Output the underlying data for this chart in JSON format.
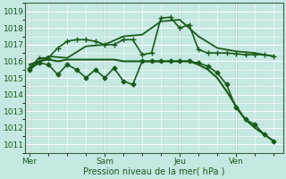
{
  "background_color": "#c5e8e2",
  "grid_color": "#ffffff",
  "line_color": "#1a5c1a",
  "ylim": [
    1010.5,
    1019.5
  ],
  "yticks": [
    1011,
    1012,
    1013,
    1014,
    1015,
    1016,
    1017,
    1018,
    1019
  ],
  "xlabel": "Pression niveau de la mer( hPa )",
  "xtick_labels": [
    "Mer",
    "Sam",
    "Jeu",
    "Ven"
  ],
  "xtick_positions": [
    0,
    8,
    16,
    22
  ],
  "xlim": [
    -0.5,
    27
  ],
  "vline_positions": [
    0,
    8,
    16,
    22
  ],
  "series": [
    {
      "x": [
        0,
        1,
        2,
        3,
        4,
        5,
        6,
        7,
        8,
        9,
        10,
        11,
        12,
        13,
        14,
        15,
        16,
        17,
        18,
        19,
        20,
        21,
        22,
        23,
        24,
        25,
        26
      ],
      "y": [
        1015.8,
        1016.0,
        1016.1,
        1016.0,
        1016.1,
        1016.1,
        1016.1,
        1016.1,
        1016.1,
        1016.1,
        1016.0,
        1016.0,
        1016.0,
        1016.0,
        1016.0,
        1016.0,
        1016.0,
        1016.0,
        1015.8,
        1015.5,
        1015.0,
        1014.2,
        1013.3,
        1012.5,
        1012.0,
        1011.6,
        1011.2
      ],
      "marker": null,
      "linewidth": 1.5,
      "zorder": 3
    },
    {
      "x": [
        0,
        1,
        2,
        3,
        4,
        5,
        6,
        7,
        8,
        9,
        10,
        11,
        12,
        13,
        14,
        15,
        16,
        17,
        18,
        19,
        20,
        21,
        22,
        23,
        24,
        25,
        26
      ],
      "y": [
        1015.6,
        1016.2,
        1016.2,
        1016.8,
        1017.2,
        1017.3,
        1017.3,
        1017.2,
        1017.0,
        1017.0,
        1017.3,
        1017.3,
        1016.4,
        1016.5,
        1018.6,
        1018.65,
        1018.0,
        1018.2,
        1016.7,
        1016.5,
        1016.5,
        1016.5,
        1016.45,
        1016.4,
        1016.4,
        1016.4,
        1016.3
      ],
      "marker": "+",
      "markersize": 4,
      "linewidth": 1.2,
      "zorder": 4
    },
    {
      "x": [
        0,
        2,
        4,
        6,
        8,
        10,
        12,
        14,
        16,
        18,
        20,
        22,
        24,
        26
      ],
      "y": [
        1015.6,
        1016.3,
        1016.2,
        1016.9,
        1017.0,
        1017.5,
        1017.6,
        1018.4,
        1018.5,
        1017.5,
        1016.8,
        1016.6,
        1016.5,
        1016.3
      ],
      "marker": null,
      "linewidth": 1.3,
      "zorder": 3
    },
    {
      "x": [
        0,
        1,
        2,
        3,
        4,
        5,
        6,
        7,
        8,
        9,
        10,
        11,
        12,
        13,
        14,
        15,
        16,
        17,
        18,
        19,
        20,
        21,
        22,
        23,
        24,
        25,
        26
      ],
      "y": [
        1015.5,
        1015.9,
        1015.8,
        1015.2,
        1015.8,
        1015.5,
        1015.0,
        1015.5,
        1015.0,
        1015.6,
        1014.8,
        1014.6,
        1016.0,
        1016.0,
        1016.0,
        1016.0,
        1016.0,
        1016.0,
        1015.9,
        1015.7,
        1015.3,
        1014.6,
        1013.2,
        1012.5,
        1012.2,
        1011.6,
        1011.2
      ],
      "marker": "D",
      "markersize": 2.5,
      "linewidth": 1.2,
      "zorder": 5
    }
  ]
}
